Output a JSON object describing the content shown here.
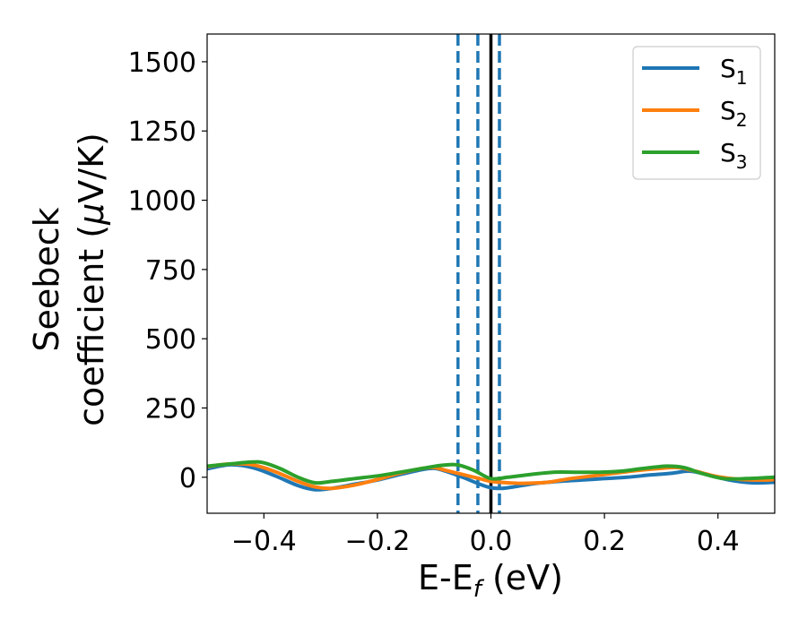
{
  "chart_data": {
    "type": "line",
    "xlabel": {
      "main": "E-E",
      "sub": "f",
      "unit": " (eV)"
    },
    "ylabel": {
      "line1": "Seebeck",
      "line2": "coefficient  (",
      "mu": "μ",
      "unit": "V/K)"
    },
    "xlim": [
      -0.5,
      0.5
    ],
    "ylim": [
      -130,
      1600
    ],
    "xticks": [
      -0.4,
      -0.2,
      0.0,
      0.2,
      0.4
    ],
    "xtick_labels": [
      "−0.4",
      "−0.2",
      "0.0",
      "0.2",
      "0.4"
    ],
    "yticks": [
      0,
      250,
      500,
      750,
      1000,
      1250,
      1500
    ],
    "ytick_labels": [
      "0",
      "250",
      "500",
      "750",
      "1000",
      "1250",
      "1500"
    ],
    "grid": false,
    "legend": "top-right",
    "vlines": [
      {
        "x": 0.0,
        "style": "solid",
        "color": "#000000"
      },
      {
        "x": -0.058,
        "style": "dashed",
        "color": "#1f77b4"
      },
      {
        "x": -0.023,
        "style": "dashed",
        "color": "#1f77b4"
      },
      {
        "x": 0.015,
        "style": "dashed",
        "color": "#1f77b4"
      }
    ],
    "series": [
      {
        "name": "S",
        "sub": "1",
        "color": "#1f77b4",
        "x": [
          -0.5,
          -0.46,
          -0.42,
          -0.38,
          -0.34,
          -0.31,
          -0.28,
          -0.24,
          -0.2,
          -0.16,
          -0.12,
          -0.1,
          -0.08,
          -0.05,
          -0.02,
          0.0,
          0.02,
          0.04,
          0.08,
          0.12,
          0.16,
          0.2,
          0.24,
          0.28,
          0.32,
          0.35,
          0.38,
          0.42,
          0.46,
          0.5
        ],
        "y": [
          30,
          45,
          35,
          5,
          -30,
          -45,
          -40,
          -25,
          -10,
          10,
          28,
          32,
          22,
          0,
          -25,
          -38,
          -40,
          -35,
          -22,
          -15,
          -10,
          -5,
          0,
          8,
          15,
          22,
          10,
          -10,
          -20,
          -18
        ]
      },
      {
        "name": "S",
        "sub": "2",
        "color": "#ff7f0e",
        "x": [
          -0.5,
          -0.46,
          -0.42,
          -0.38,
          -0.34,
          -0.31,
          -0.28,
          -0.24,
          -0.2,
          -0.16,
          -0.12,
          -0.1,
          -0.08,
          -0.05,
          -0.02,
          0.0,
          0.03,
          0.06,
          0.1,
          0.14,
          0.18,
          0.22,
          0.26,
          0.3,
          0.33,
          0.36,
          0.4,
          0.44,
          0.48,
          0.5
        ],
        "y": [
          38,
          48,
          45,
          20,
          -15,
          -35,
          -40,
          -28,
          -8,
          15,
          32,
          35,
          25,
          10,
          -5,
          -15,
          -20,
          -22,
          -18,
          -5,
          5,
          15,
          25,
          32,
          35,
          22,
          2,
          -8,
          -10,
          -8
        ]
      },
      {
        "name": "S",
        "sub": "3",
        "color": "#2ca02c",
        "x": [
          -0.5,
          -0.46,
          -0.42,
          -0.4,
          -0.37,
          -0.34,
          -0.31,
          -0.28,
          -0.24,
          -0.2,
          -0.16,
          -0.12,
          -0.09,
          -0.06,
          -0.03,
          0.0,
          0.03,
          0.07,
          0.11,
          0.15,
          0.19,
          0.23,
          0.27,
          0.31,
          0.34,
          0.37,
          0.41,
          0.45,
          0.5
        ],
        "y": [
          40,
          48,
          55,
          52,
          30,
          0,
          -20,
          -15,
          -5,
          5,
          18,
          32,
          42,
          45,
          25,
          -5,
          0,
          10,
          18,
          18,
          18,
          22,
          32,
          40,
          35,
          15,
          -5,
          -5,
          0
        ]
      }
    ]
  }
}
